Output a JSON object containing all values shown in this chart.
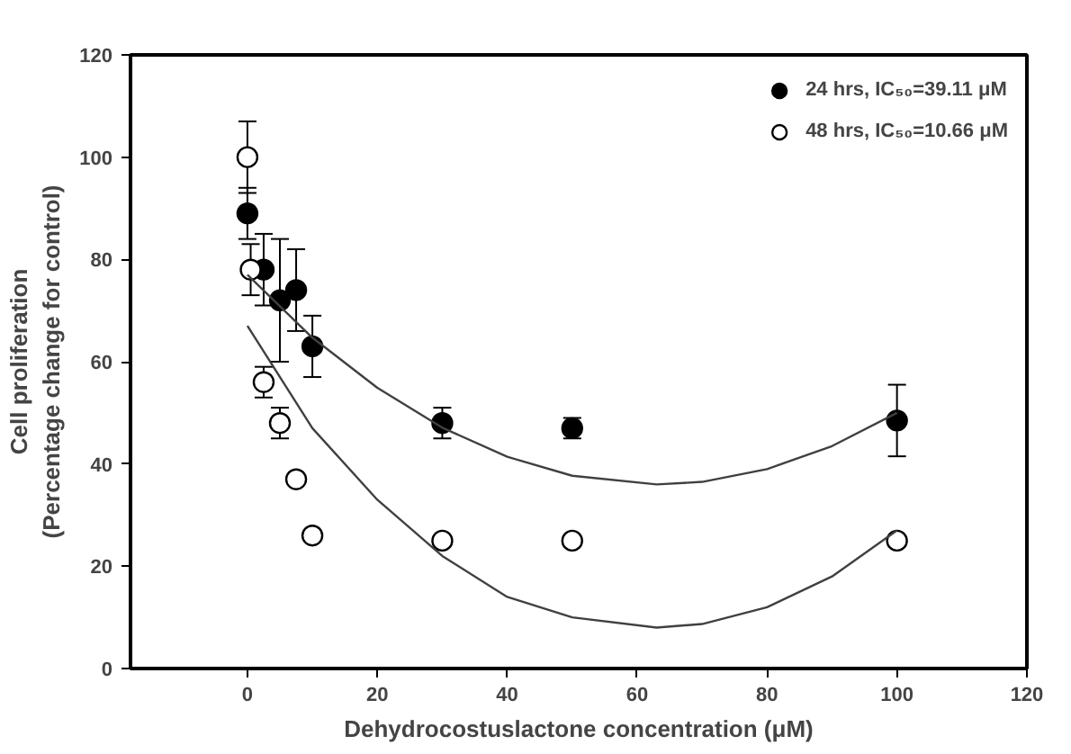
{
  "chart_data": {
    "type": "scatter",
    "xlabel": "Dehydrocostuslactone concentration (μM)",
    "ylabel": "Cell proliferation\n(Percentage change for control)",
    "xlim": [
      -18,
      120
    ],
    "xticks": [
      0,
      20,
      40,
      60,
      80,
      100,
      120
    ],
    "ylim": [
      0,
      120
    ],
    "yticks": [
      0,
      20,
      40,
      60,
      80,
      100,
      120
    ],
    "legend": "top right",
    "grid": false,
    "series": [
      {
        "name": "24 hrs, IC₅₀=39.11 μM",
        "marker": "circle",
        "color": "#000000",
        "x": [
          0,
          2.5,
          5,
          7.5,
          10,
          30,
          50,
          100
        ],
        "values": [
          89,
          78,
          72,
          74,
          63,
          48,
          47,
          48.5
        ],
        "errors": [
          5,
          7,
          12,
          8,
          6,
          3,
          2,
          7
        ]
      },
      {
        "name": "48 hrs, IC₅₀=10.66 μM",
        "marker": "circle",
        "color": "#ffffff",
        "x": [
          0,
          0.5,
          2.5,
          5,
          7.5,
          10,
          30,
          50,
          100
        ],
        "values": [
          100,
          78,
          56,
          48,
          37,
          26,
          25,
          25,
          25
        ],
        "errors": [
          7,
          5,
          3,
          3,
          null,
          null,
          null,
          null,
          null
        ]
      },
      {
        "type": "line",
        "color": "#404040",
        "x": [
          0,
          10,
          20,
          30,
          40,
          50,
          63,
          70,
          80,
          90,
          100
        ],
        "values": [
          77,
          64.7,
          54.9,
          47.1,
          41.4,
          37.7,
          36,
          36.5,
          39,
          43.5,
          50
        ]
      },
      {
        "type": "line",
        "color": "#404040",
        "x": [
          0,
          10,
          20,
          30,
          40,
          50,
          63,
          70,
          80,
          90,
          100
        ],
        "values": [
          67,
          47,
          33,
          22,
          14,
          10,
          8,
          8.7,
          12,
          18,
          27
        ]
      }
    ]
  }
}
